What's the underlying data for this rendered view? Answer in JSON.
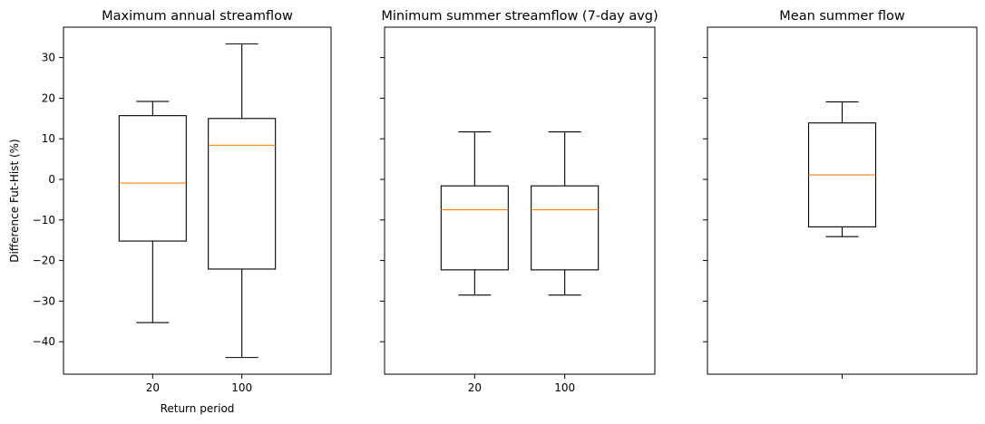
{
  "chart_data": [
    {
      "type": "box",
      "title": "Maximum annual streamflow",
      "xlabel": "Return period",
      "ylabel": "Difference Fut-Hist (%)",
      "ylim": [
        -48,
        37.5
      ],
      "yticks": [
        30,
        20,
        10,
        0,
        -10,
        -20,
        -30,
        -40
      ],
      "ytick_labels": [
        "30",
        "20",
        "10",
        "0",
        "−10",
        "−20",
        "−30",
        "−40"
      ],
      "show_ytick_labels": true,
      "categories": [
        "20",
        "100"
      ],
      "boxes": [
        {
          "whisker_low": -35.3,
          "q1": -15.2,
          "median": -0.9,
          "q3": 15.7,
          "whisker_high": 19.2
        },
        {
          "whisker_low": -43.9,
          "q1": -22.1,
          "median": 8.4,
          "q3": 15.0,
          "whisker_high": 33.4
        }
      ]
    },
    {
      "type": "box",
      "title": "Minimum summer streamflow (7-day avg)",
      "xlabel": "",
      "ylabel": "",
      "ylim": [
        -48,
        37.5
      ],
      "yticks": [
        30,
        20,
        10,
        0,
        -10,
        -20,
        -30,
        -40
      ],
      "show_ytick_labels": false,
      "categories": [
        "20",
        "100"
      ],
      "boxes": [
        {
          "whisker_low": -28.5,
          "q1": -22.3,
          "median": -7.5,
          "q3": -1.6,
          "whisker_high": 11.7
        },
        {
          "whisker_low": -28.5,
          "q1": -22.3,
          "median": -7.5,
          "q3": -1.6,
          "whisker_high": 11.7
        }
      ]
    },
    {
      "type": "box",
      "title": "Mean summer flow",
      "xlabel": "",
      "ylabel": "",
      "ylim": [
        -48,
        37.5
      ],
      "yticks": [
        30,
        20,
        10,
        0,
        -10,
        -20,
        -30,
        -40
      ],
      "show_ytick_labels": false,
      "categories": [
        ""
      ],
      "boxes": [
        {
          "whisker_low": -14.1,
          "q1": -11.7,
          "median": 1.1,
          "q3": 13.9,
          "whisker_high": 19.1
        }
      ]
    }
  ],
  "colors": {
    "box": "#000000",
    "median": "#ff7f0e",
    "axes": "#000000"
  }
}
